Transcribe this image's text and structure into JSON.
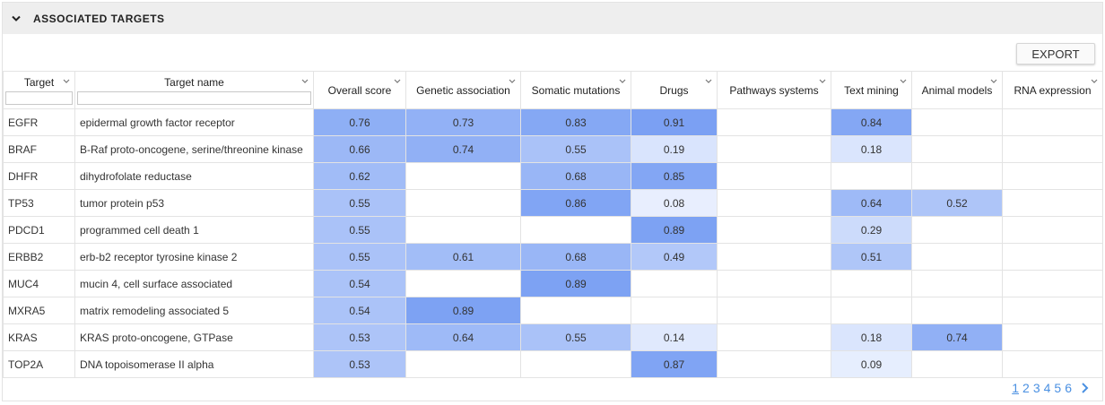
{
  "panel": {
    "title": "ASSOCIATED TARGETS",
    "export_label": "EXPORT"
  },
  "columns": [
    {
      "label": "Target",
      "filter": true
    },
    {
      "label": "Target name",
      "filter": true
    },
    {
      "label": "Overall score"
    },
    {
      "label": "Genetic association"
    },
    {
      "label": "Somatic mutations"
    },
    {
      "label": "Drugs"
    },
    {
      "label": "Pathways systems"
    },
    {
      "label": "Text mining"
    },
    {
      "label": "Animal models"
    },
    {
      "label": "RNA expression"
    }
  ],
  "rows": [
    {
      "target": "EGFR",
      "name": "epidermal growth factor receptor",
      "scores": [
        "0.76",
        "0.73",
        "0.83",
        "0.91",
        "",
        "0.84",
        "",
        ""
      ]
    },
    {
      "target": "BRAF",
      "name": "B-Raf proto-oncogene, serine/threonine kinase",
      "scores": [
        "0.66",
        "0.74",
        "0.55",
        "0.19",
        "",
        "0.18",
        "",
        ""
      ]
    },
    {
      "target": "DHFR",
      "name": "dihydrofolate reductase",
      "scores": [
        "0.62",
        "",
        "0.68",
        "0.85",
        "",
        "",
        "",
        ""
      ]
    },
    {
      "target": "TP53",
      "name": "tumor protein p53",
      "scores": [
        "0.55",
        "",
        "0.86",
        "0.08",
        "",
        "0.64",
        "0.52",
        ""
      ]
    },
    {
      "target": "PDCD1",
      "name": "programmed cell death 1",
      "scores": [
        "0.55",
        "",
        "",
        "0.89",
        "",
        "0.29",
        "",
        ""
      ]
    },
    {
      "target": "ERBB2",
      "name": "erb-b2 receptor tyrosine kinase 2",
      "scores": [
        "0.55",
        "0.61",
        "0.68",
        "0.49",
        "",
        "0.51",
        "",
        ""
      ]
    },
    {
      "target": "MUC4",
      "name": "mucin 4, cell surface associated",
      "scores": [
        "0.54",
        "",
        "0.89",
        "",
        "",
        "",
        "",
        ""
      ]
    },
    {
      "target": "MXRA5",
      "name": "matrix remodeling associated 5",
      "scores": [
        "0.54",
        "0.89",
        "",
        "",
        "",
        "",
        "",
        ""
      ]
    },
    {
      "target": "KRAS",
      "name": "KRAS proto-oncogene, GTPase",
      "scores": [
        "0.53",
        "0.64",
        "0.55",
        "0.14",
        "",
        "0.18",
        "0.74",
        ""
      ]
    },
    {
      "target": "TOP2A",
      "name": "DNA topoisomerase II alpha",
      "scores": [
        "0.53",
        "",
        "",
        "0.87",
        "",
        "0.09",
        "",
        ""
      ]
    }
  ],
  "pagination": {
    "pages": [
      "1",
      "2",
      "3",
      "4",
      "5",
      "6"
    ],
    "current": "1"
  },
  "colors": {
    "scale_low": "#f2f6ff",
    "scale_high": "#6f98f2",
    "header_bg": "#eeeeee",
    "pager": "#4a90e2"
  },
  "icons": {
    "collapse": "chevron-down-icon",
    "sort": "chevron-down-icon",
    "next": "chevron-right-icon"
  }
}
